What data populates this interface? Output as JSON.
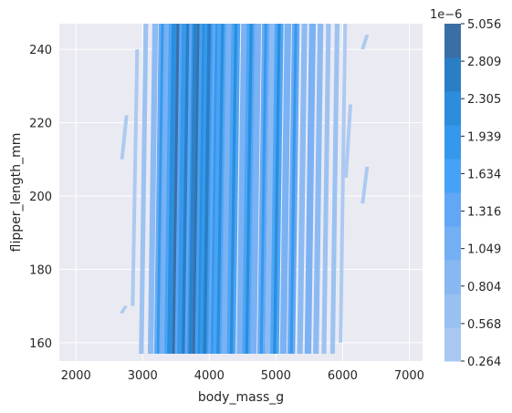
{
  "chart_data": {
    "type": "heatmap",
    "kind": "filled-kde-contour",
    "title": "",
    "xlabel": "body_mass_g",
    "ylabel": "flipper_length_mm",
    "xlim": [
      1750,
      7200
    ],
    "ylim": [
      155,
      247
    ],
    "xticks": [
      2000,
      3000,
      4000,
      5000,
      6000,
      7000
    ],
    "yticks": [
      160,
      180,
      200,
      220,
      240
    ],
    "grid": true,
    "background": "#eaeaf2",
    "colorbar": {
      "offset_label": "1e−6",
      "levels": [
        "0.264",
        "0.568",
        "0.804",
        "1.049",
        "1.316",
        "1.634",
        "1.939",
        "2.305",
        "2.809",
        "5.056"
      ],
      "colors": [
        "#a9c8f0",
        "#98c0f0",
        "#87b8f2",
        "#74aff3",
        "#61a7f5",
        "#45a2f6",
        "#3499ec",
        "#2c8ddd",
        "#2a7ec6",
        "#3a6fa5"
      ]
    },
    "bands": [
      {
        "x": 2680,
        "y": [
          168,
          170
        ],
        "level": 0
      },
      {
        "x": 2690,
        "y": [
          210,
          222
        ],
        "level": 0
      },
      {
        "x": 2850,
        "y": [
          170,
          240
        ],
        "level": 0
      },
      {
        "x": 2980,
        "y": [
          157,
          247
        ],
        "level": 1
      },
      {
        "x": 3120,
        "y": [
          157,
          247
        ],
        "level": 2
      },
      {
        "x": 3230,
        "y": [
          157,
          247
        ],
        "level": 4
      },
      {
        "x": 3300,
        "y": [
          157,
          247
        ],
        "level": 3
      },
      {
        "x": 3390,
        "y": [
          157,
          247
        ],
        "level": 5
      },
      {
        "x": 3470,
        "y": [
          157,
          247
        ],
        "level": 7
      },
      {
        "x": 3540,
        "y": [
          157,
          247
        ],
        "level": 4
      },
      {
        "x": 3610,
        "y": [
          157,
          247
        ],
        "level": 6
      },
      {
        "x": 3690,
        "y": [
          157,
          247
        ],
        "level": 4
      },
      {
        "x": 3780,
        "y": [
          157,
          247
        ],
        "level": 8
      },
      {
        "x": 3850,
        "y": [
          157,
          247
        ],
        "level": 5
      },
      {
        "x": 3930,
        "y": [
          157,
          247
        ],
        "level": 6
      },
      {
        "x": 4040,
        "y": [
          157,
          247
        ],
        "level": 4
      },
      {
        "x": 4130,
        "y": [
          157,
          247
        ],
        "level": 5
      },
      {
        "x": 4230,
        "y": [
          157,
          247
        ],
        "level": 3
      },
      {
        "x": 4330,
        "y": [
          157,
          247
        ],
        "level": 5
      },
      {
        "x": 4460,
        "y": [
          157,
          247
        ],
        "level": 3
      },
      {
        "x": 4560,
        "y": [
          157,
          247
        ],
        "level": 5
      },
      {
        "x": 4660,
        "y": [
          157,
          247
        ],
        "level": 3
      },
      {
        "x": 4780,
        "y": [
          157,
          247
        ],
        "level": 4
      },
      {
        "x": 4880,
        "y": [
          157,
          247
        ],
        "level": 2
      },
      {
        "x": 4980,
        "y": [
          157,
          247
        ],
        "level": 5
      },
      {
        "x": 5110,
        "y": [
          157,
          247
        ],
        "level": 3
      },
      {
        "x": 5230,
        "y": [
          157,
          247
        ],
        "level": 4
      },
      {
        "x": 5360,
        "y": [
          157,
          247
        ],
        "level": 2
      },
      {
        "x": 5480,
        "y": [
          157,
          247
        ],
        "level": 3
      },
      {
        "x": 5600,
        "y": [
          157,
          247
        ],
        "level": 2
      },
      {
        "x": 5720,
        "y": [
          157,
          247
        ],
        "level": 1
      },
      {
        "x": 5850,
        "y": [
          157,
          247
        ],
        "level": 1
      },
      {
        "x": 5970,
        "y": [
          160,
          247
        ],
        "level": 0
      },
      {
        "x": 6050,
        "y": [
          205,
          225
        ],
        "level": 0
      },
      {
        "x": 6300,
        "y": [
          198,
          208
        ],
        "level": 0
      },
      {
        "x": 6300,
        "y": [
          240,
          244
        ],
        "level": 0
      }
    ]
  }
}
